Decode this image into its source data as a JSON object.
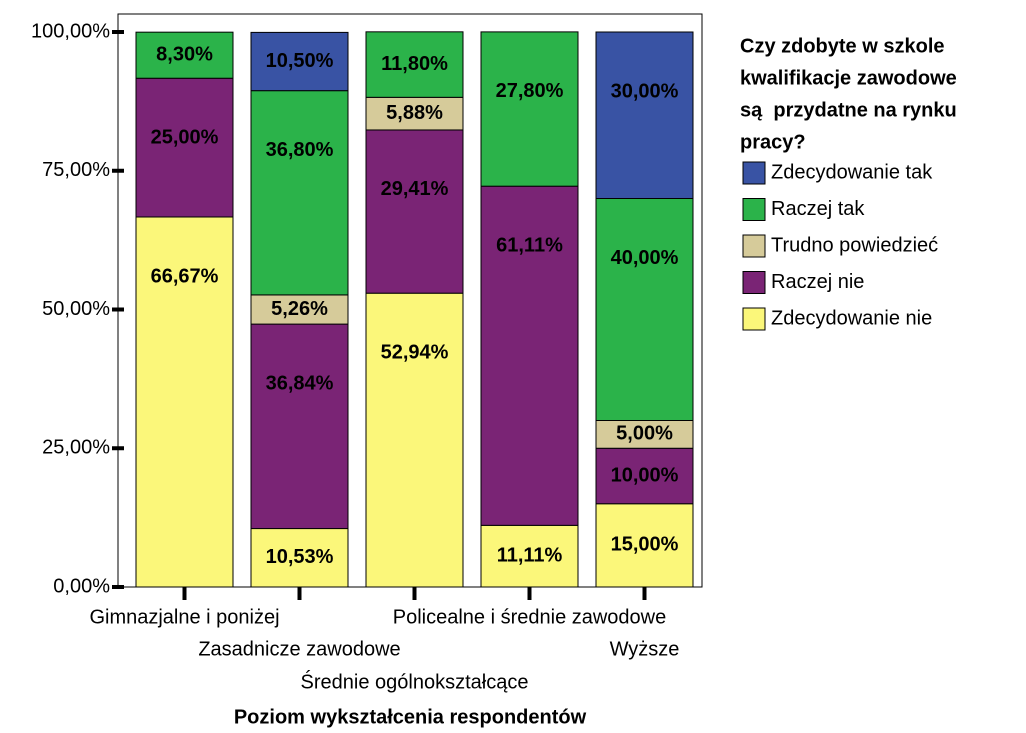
{
  "chart_data": {
    "type": "stacked_bar",
    "categories": [
      "Gimnazjalne i poniżej",
      "Zasadnicze zawodowe",
      "Średnie ogólnokształcące",
      "Policealne i średnie zawodowe",
      "Wyższe"
    ],
    "series": [
      {
        "name": "Zdecydowanie nie",
        "color": "#fbf77a",
        "values": [
          66.67,
          10.53,
          52.94,
          11.11,
          15.0
        ],
        "value_labels": [
          "66,67%",
          "10,53%",
          "52,94%",
          "11,11%",
          "15,00%"
        ]
      },
      {
        "name": "Raczej nie",
        "color": "#7a2475",
        "values": [
          25.0,
          36.84,
          29.41,
          61.11,
          10.0
        ],
        "value_labels": [
          "25,00%",
          "36,84%",
          "29,41%",
          "61,11%",
          "10,00%"
        ]
      },
      {
        "name": "Trudno powiedzieć",
        "color": "#d6cb9a",
        "values": [
          null,
          5.26,
          5.88,
          null,
          5.0
        ],
        "value_labels": [
          null,
          "5,26%",
          "5,88%",
          null,
          "5,00%"
        ]
      },
      {
        "name": "Raczej tak",
        "color": "#2bb34a",
        "values": [
          8.3,
          36.8,
          11.8,
          27.8,
          40.0
        ],
        "value_labels": [
          "8,30%",
          "36,80%",
          "11,80%",
          "27,80%",
          "40,00%"
        ]
      },
      {
        "name": "Zdecydowanie tak",
        "color": "#3953a4",
        "values": [
          null,
          10.5,
          null,
          null,
          30.0
        ],
        "value_labels": [
          null,
          "10,50%",
          null,
          null,
          "30,00%"
        ]
      }
    ],
    "ylim": [
      0,
      100
    ],
    "yticks": [
      {
        "value": 0,
        "label": "0,00%"
      },
      {
        "value": 25,
        "label": "25,00%"
      },
      {
        "value": 50,
        "label": "50,00%"
      },
      {
        "value": 75,
        "label": "75,00%"
      },
      {
        "value": 100,
        "label": "100,00%"
      }
    ],
    "x_label": "Poziom wykształcenia respondentów",
    "legend_title": [
      "Czy zdobyte w szkole",
      "kwalifikacje zawodowe",
      "są  przydatne na rynku",
      "pracy?"
    ],
    "legend_position": "right"
  }
}
